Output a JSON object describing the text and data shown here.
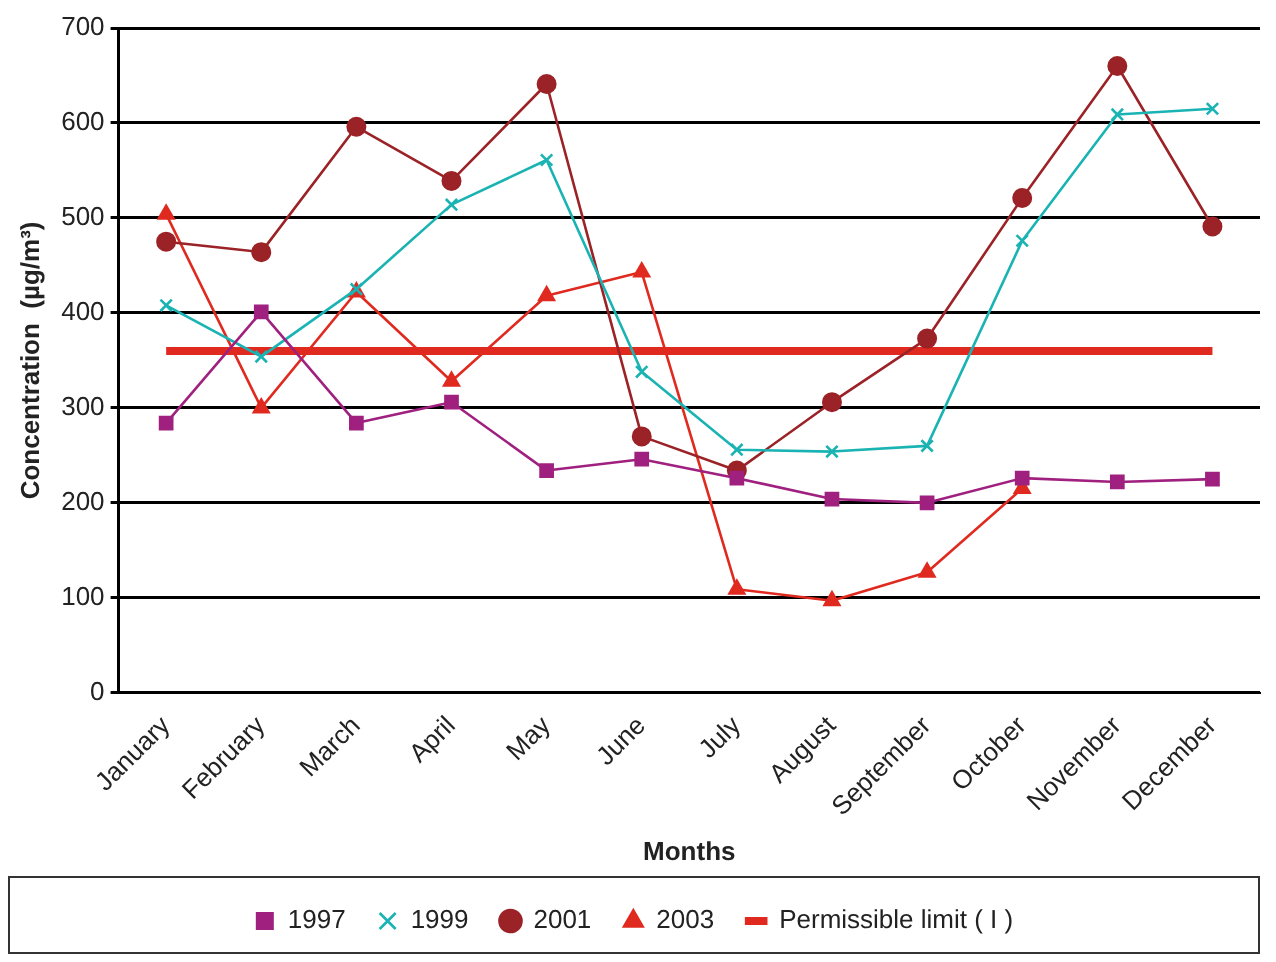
{
  "chart_data": {
    "type": "line",
    "xlabel": "Months",
    "ylabel": "Concentration  (µg/m³)",
    "categories": [
      "January",
      "February",
      "March",
      "April",
      "May",
      "June",
      "July",
      "August",
      "September",
      "October",
      "November",
      "December"
    ],
    "ylim": [
      0,
      700
    ],
    "yticks": [
      0,
      100,
      200,
      300,
      400,
      500,
      600,
      700
    ],
    "grid": "y",
    "legend": "bottom",
    "line_style": "solid",
    "ref_lines": [
      {
        "axis": "y",
        "value": 360,
        "label": "Permissible limit ( I )",
        "color": "#e02a1f"
      }
    ],
    "series": [
      {
        "name": "1997",
        "color": "#a0207f",
        "marker": "square",
        "values": [
          284,
          401,
          284,
          306,
          234,
          246,
          226,
          204,
          200,
          226,
          222,
          225
        ]
      },
      {
        "name": "1999",
        "color": "#1ab3b3",
        "marker": "cross",
        "values": [
          408,
          354,
          425,
          514,
          561,
          338,
          256,
          254,
          260,
          476,
          609,
          615
        ]
      },
      {
        "name": "2001",
        "color": "#9b2226",
        "marker": "circle",
        "values": [
          475,
          464,
          596,
          539,
          641,
          270,
          234,
          306,
          373,
          521,
          660,
          491
        ]
      },
      {
        "name": "2003",
        "color": "#e02a1f",
        "marker": "triangle",
        "values": [
          504,
          300,
          422,
          328,
          418,
          443,
          109,
          97,
          127,
          215,
          null,
          null
        ]
      }
    ]
  }
}
